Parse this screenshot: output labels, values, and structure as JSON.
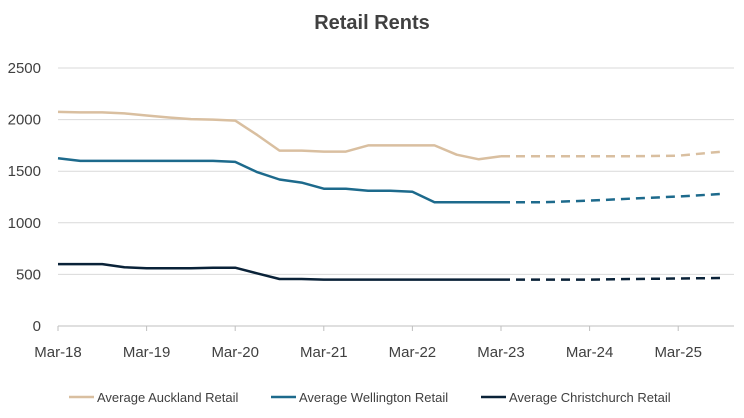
{
  "chart_data": {
    "type": "line",
    "title": "Retail Rents",
    "xlabel": "",
    "ylabel": "",
    "ylim": [
      0,
      2500
    ],
    "yticks": [
      0,
      500,
      1000,
      1500,
      2000,
      2500
    ],
    "xtick_labels": [
      "Mar-18",
      "Mar-19",
      "Mar-20",
      "Mar-21",
      "Mar-22",
      "Mar-23",
      "Mar-24",
      "Mar-25"
    ],
    "x_axis_unit": "years since Mar-18",
    "xlim": [
      0,
      7.6
    ],
    "grid": true,
    "legend_position": "bottom",
    "series": [
      {
        "name": "Average Auckland Retail",
        "color": "#d9bfa0",
        "actual": {
          "x": [
            0,
            0.25,
            0.5,
            0.75,
            1.0,
            1.25,
            1.5,
            1.75,
            2.0,
            2.25,
            2.5,
            2.75,
            3.0,
            3.25,
            3.5,
            3.75,
            4.0,
            4.25,
            4.5,
            4.75,
            5.0
          ],
          "y": [
            2075,
            2070,
            2070,
            2060,
            2040,
            2020,
            2005,
            2000,
            1990,
            1850,
            1700,
            1700,
            1690,
            1690,
            1750,
            1750,
            1750,
            1750,
            1660,
            1615,
            1645
          ]
        },
        "forecast": {
          "x": [
            5.0,
            5.5,
            6.0,
            6.5,
            7.0,
            7.5
          ],
          "y": [
            1645,
            1645,
            1645,
            1645,
            1650,
            1690
          ]
        }
      },
      {
        "name": "Average Wellington Retail",
        "color": "#1d6a8c",
        "actual": {
          "x": [
            0,
            0.25,
            0.5,
            0.75,
            1.0,
            1.25,
            1.5,
            1.75,
            2.0,
            2.25,
            2.5,
            2.75,
            3.0,
            3.25,
            3.5,
            3.75,
            4.0,
            4.25,
            4.5,
            4.75,
            5.0
          ],
          "y": [
            1625,
            1600,
            1600,
            1600,
            1600,
            1600,
            1600,
            1600,
            1590,
            1490,
            1420,
            1390,
            1330,
            1330,
            1310,
            1310,
            1300,
            1200,
            1200,
            1200,
            1200
          ]
        },
        "forecast": {
          "x": [
            5.0,
            5.5,
            6.0,
            6.5,
            7.0,
            7.5
          ],
          "y": [
            1200,
            1200,
            1215,
            1235,
            1255,
            1280
          ]
        }
      },
      {
        "name": "Average Christchurch Retail",
        "color": "#0a2238",
        "actual": {
          "x": [
            0,
            0.25,
            0.5,
            0.75,
            1.0,
            1.25,
            1.5,
            1.75,
            2.0,
            2.25,
            2.5,
            2.75,
            3.0,
            3.25,
            3.5,
            3.75,
            4.0,
            4.25,
            4.5,
            4.75,
            5.0
          ],
          "y": [
            600,
            600,
            600,
            570,
            560,
            560,
            560,
            565,
            565,
            510,
            455,
            455,
            450,
            450,
            450,
            450,
            450,
            450,
            450,
            450,
            450
          ]
        },
        "forecast": {
          "x": [
            5.0,
            5.5,
            6.0,
            6.5,
            7.0,
            7.5
          ],
          "y": [
            450,
            450,
            450,
            455,
            460,
            465
          ]
        }
      }
    ]
  }
}
